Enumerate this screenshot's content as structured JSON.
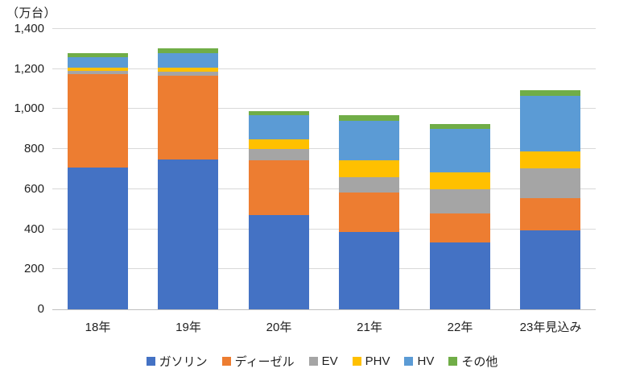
{
  "chart_data": {
    "type": "bar",
    "stacked": true,
    "unit_label": "（万台）",
    "categories": [
      "18年",
      "19年",
      "20年",
      "21年",
      "22年",
      "23年見込み"
    ],
    "series": [
      {
        "name": "ガソリン",
        "color": "#4472c4",
        "values": [
          710,
          750,
          470,
          385,
          335,
          395
        ]
      },
      {
        "name": "ディーゼル",
        "color": "#ed7d31",
        "values": [
          465,
          415,
          275,
          200,
          145,
          160
        ]
      },
      {
        "name": "EV",
        "color": "#a5a5a5",
        "values": [
          15,
          20,
          55,
          75,
          120,
          150
        ]
      },
      {
        "name": "PHV",
        "color": "#ffc000",
        "values": [
          15,
          20,
          50,
          85,
          85,
          85
        ]
      },
      {
        "name": "HV",
        "color": "#5b9bd5",
        "values": [
          55,
          75,
          120,
          195,
          215,
          275
        ]
      },
      {
        "name": "その他",
        "color": "#70ad47",
        "values": [
          20,
          25,
          20,
          30,
          25,
          30
        ]
      }
    ],
    "totals": [
      1280,
      1305,
      990,
      970,
      925,
      1095
    ],
    "ylim": [
      0,
      1400
    ],
    "ytick_step": 200,
    "ytick_labels": [
      "0",
      "200",
      "400",
      "600",
      "800",
      "1,000",
      "1,200",
      "1,400"
    ],
    "grid": true,
    "legend_position": "bottom",
    "gridline_color": "#d9d9d9",
    "axis_line_color": "#bfbfbf"
  }
}
